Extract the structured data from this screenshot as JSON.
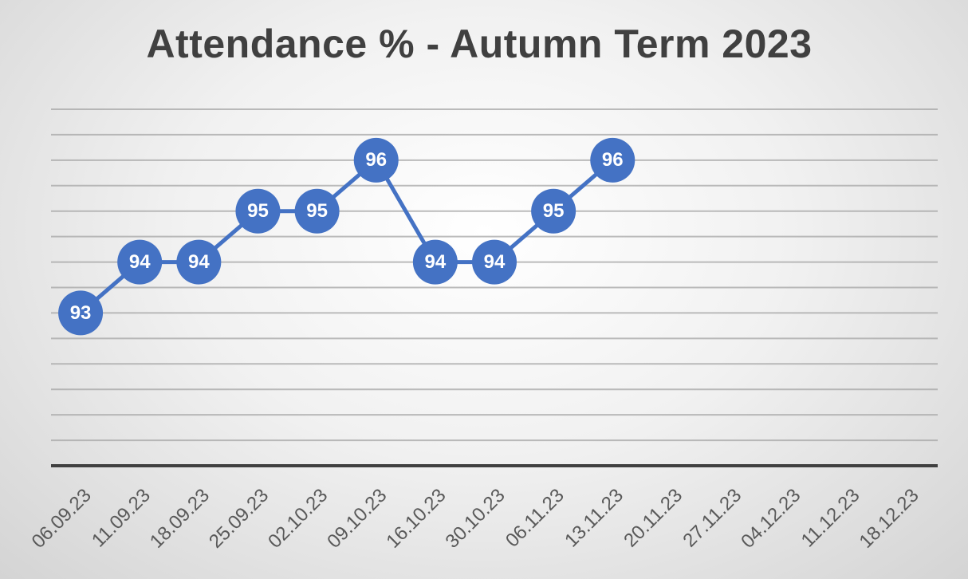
{
  "chart_data": {
    "type": "line",
    "title": "Attendance % - Autumn Term 2023",
    "xlabel": "",
    "ylabel": "",
    "categories": [
      "06.09.23",
      "11.09.23",
      "18.09.23",
      "25.09.23",
      "02.10.23",
      "09.10.23",
      "16.10.23",
      "30.10.23",
      "06.11.23",
      "13.11.23",
      "20.11.23",
      "27.11.23",
      "04.12.23",
      "11.12.23",
      "18.12.23"
    ],
    "series": [
      {
        "values": [
          93,
          94,
          94,
          95,
          95,
          96,
          94,
          94,
          95,
          96,
          null,
          null,
          null,
          null,
          null
        ]
      }
    ],
    "ylim": [
      90,
      97
    ],
    "y_gridline_step": 0.5,
    "grid": true,
    "legend": "none",
    "data_labels": true,
    "colors": {
      "line": "#4472C4",
      "marker": "#4472C4",
      "label_text": "#FFFFFF",
      "title": "#404040",
      "axis": "#404040"
    }
  }
}
